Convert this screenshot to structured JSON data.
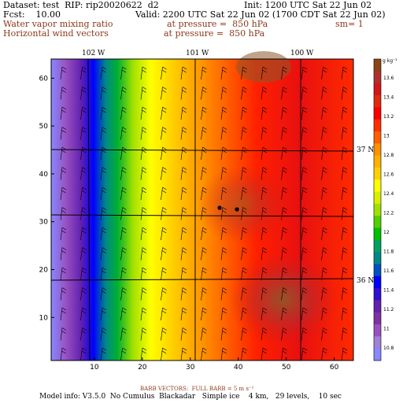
{
  "header": {
    "dataset": "Dataset: test  RIP: rip20020622  d2",
    "init": "Init: 1200 UTC Sat 22 Jun 02",
    "fcst": "Fcst:    10.00",
    "valid": "Valid: 2200 UTC Sat 22 Jun 02 (1700 CDT Sat 22 Jun 02)",
    "field1": "Water vapor mixing ratio",
    "field1_pressure": "at pressure =  850 hPa",
    "sm": "sm= 1",
    "field2": "Horizontal wind vectors",
    "field2_pressure": "at pressure =  850 hPa"
  },
  "map": {
    "longitude_labels": [
      "102 W",
      "101 W",
      "100 W"
    ],
    "latitude_labels": [
      "37 N",
      "36 N"
    ],
    "x_ticks": [
      "10",
      "20",
      "30",
      "40",
      "50",
      "60"
    ],
    "y_ticks": [
      "10",
      "20",
      "30",
      "40",
      "50",
      "60"
    ],
    "x_range": [
      1,
      64
    ],
    "y_range": [
      1,
      64
    ]
  },
  "colorbar": {
    "unit": "g kg⁻¹",
    "labels": [
      "13.6",
      "13.4",
      "13.2",
      "13",
      "12.8",
      "12.6",
      "12.4",
      "12.2",
      "12",
      "11.8",
      "11.6",
      "11.4",
      "11.2",
      "11",
      "10.8"
    ],
    "colors": [
      "#8b4513",
      "#b03030",
      "#d01818",
      "#e02a10",
      "#ff0000",
      "#ff3000",
      "#ff6000",
      "#ff9000",
      "#ffb000",
      "#ffd000",
      "#ffff00",
      "#d8f000",
      "#a0e000",
      "#50d000",
      "#00c000",
      "#00a060",
      "#008888",
      "#0050c0",
      "#0000ff",
      "#3010d0",
      "#6020b0",
      "#8030a0",
      "#9850c0",
      "#a080d8",
      "#8888ff"
    ]
  },
  "footer": {
    "barbs": "BARB VECTORS:  FULL BARB = 5 m s⁻¹",
    "model": "Model info: V3.5.0  No Cumulus  Blackadar   Simple ice    4 km,   29 levels,    10 sec"
  }
}
